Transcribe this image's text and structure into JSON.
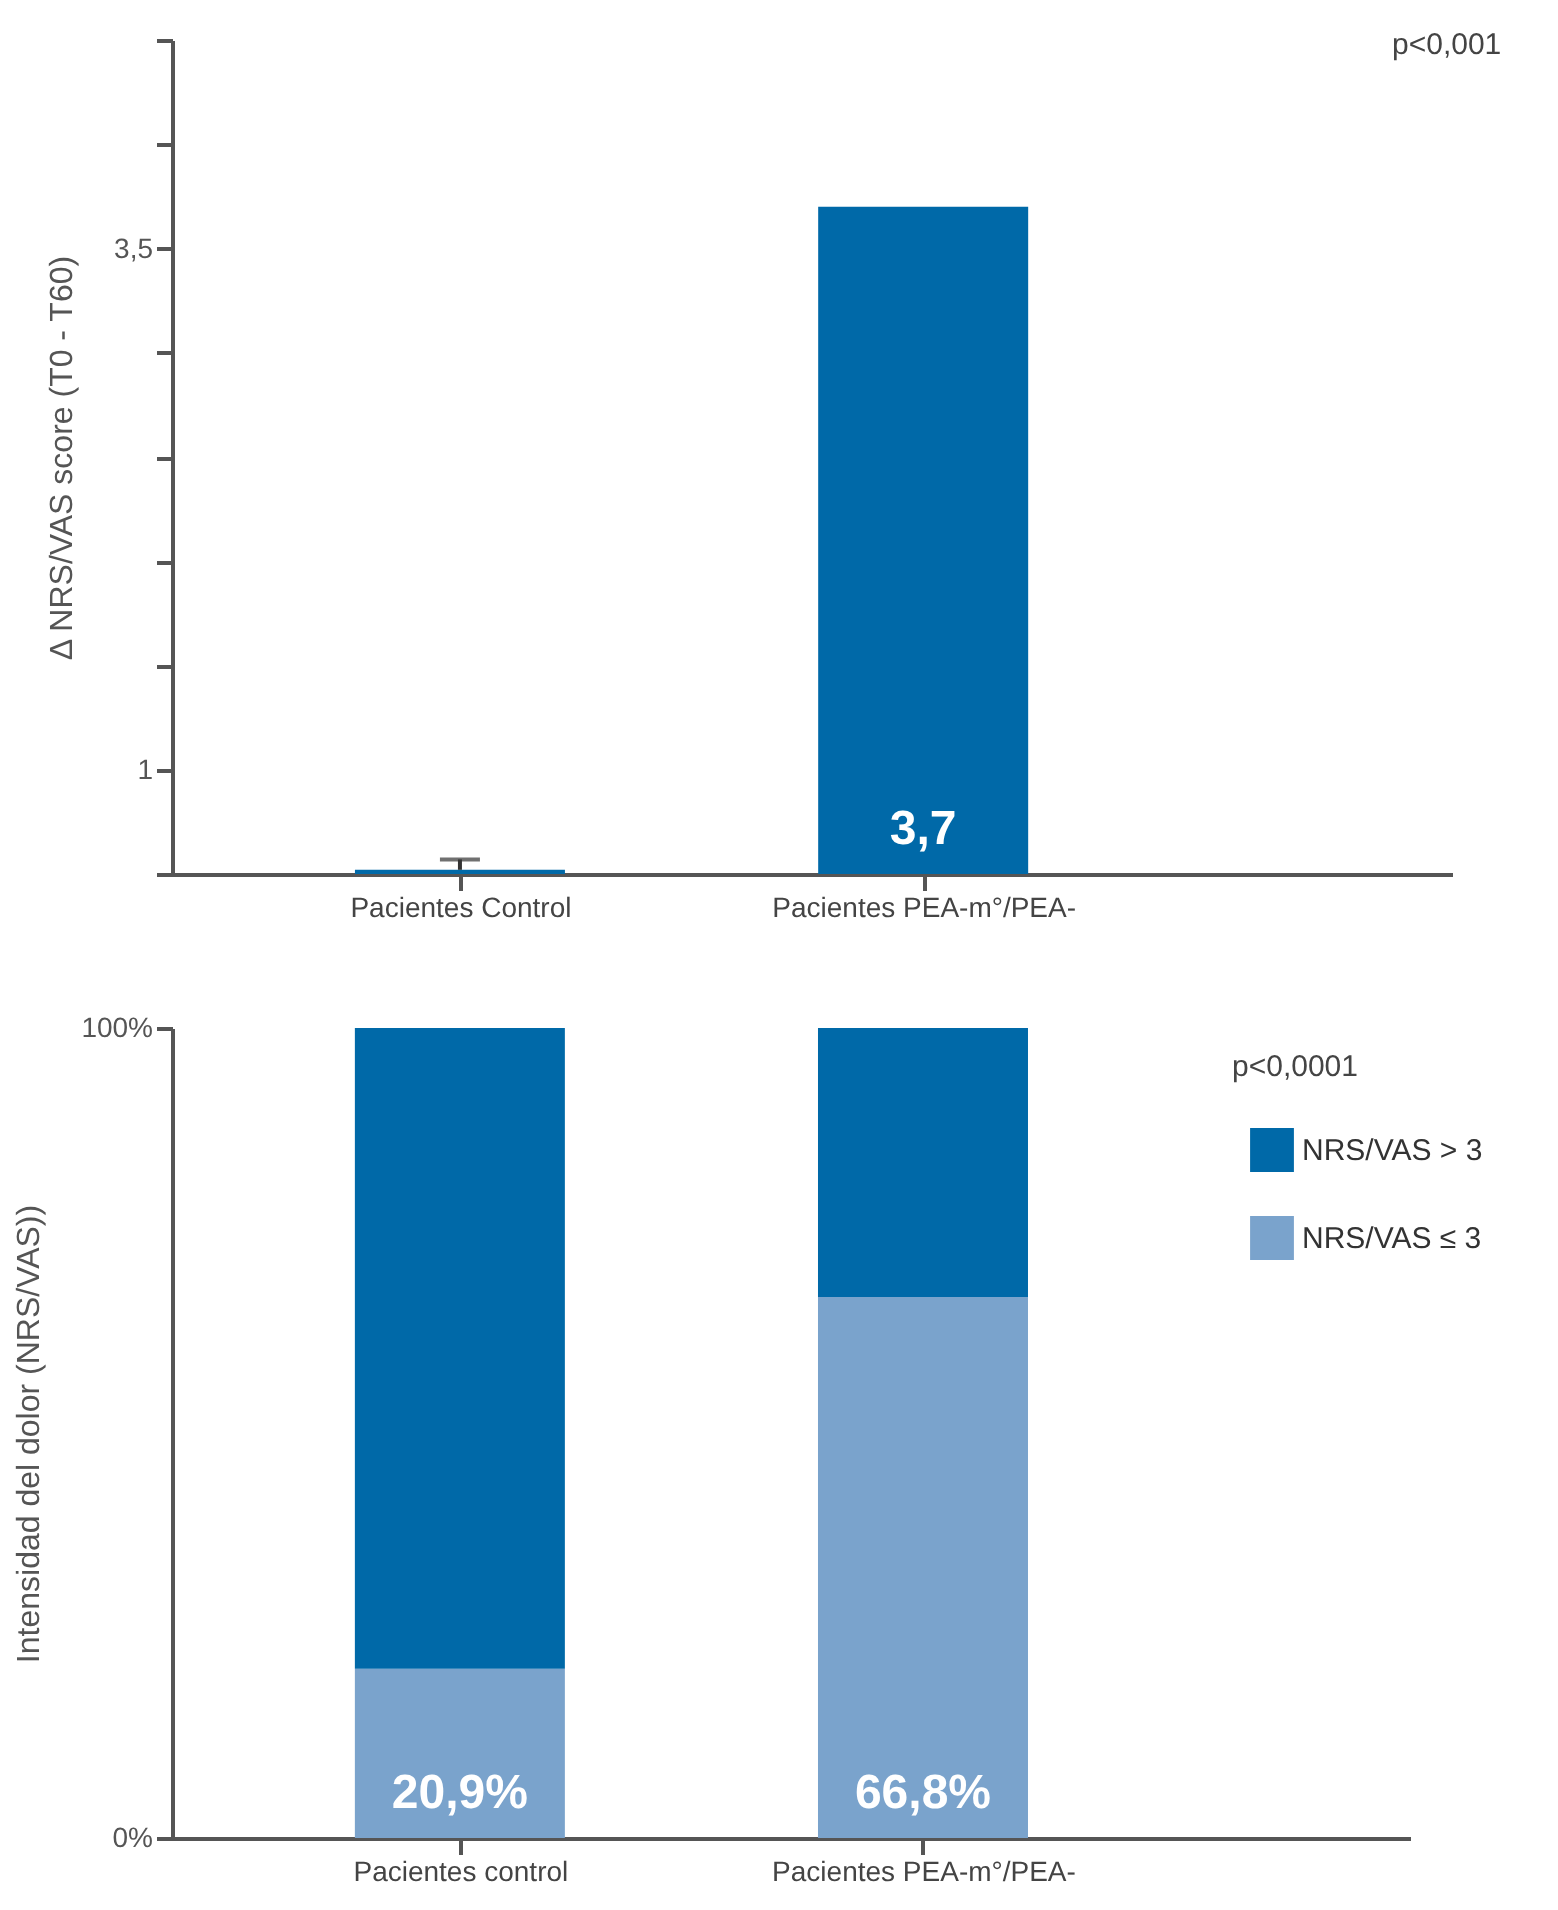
{
  "chart_data": [
    {
      "type": "bar",
      "ylabel": "Δ NRS/VAS score (T0 - T60)",
      "categories": [
        "Pacientes Control",
        "Pacientes PEA-m°/PEA-"
      ],
      "values": [
        0.52,
        3.7
      ],
      "color": "#0069a8",
      "errors": [
        [
          0.52,
          0.57
        ],
        null
      ],
      "value_labels": [
        null,
        "3,7"
      ],
      "ylim": [
        0.5,
        4.5
      ],
      "yticks": [
        {
          "value": 0.5,
          "label": null
        },
        1,
        {
          "value": 1.5,
          "label": null
        },
        {
          "value": 2,
          "label": null
        },
        {
          "value": 2.5,
          "label": null
        },
        {
          "value": 3,
          "label": null
        },
        {
          "value": 3.5,
          "label": "3,5"
        },
        {
          "value": 4,
          "label": null
        },
        {
          "value": 4.5,
          "label": null
        }
      ],
      "annotations": [
        "p<0,001"
      ]
    },
    {
      "type": "bar",
      "stacked": true,
      "ylabel": "Intensidad del dolor (NRS/VAS))",
      "categories": [
        "Pacientes control",
        "Pacientes PEA-m°/PEA-"
      ],
      "series": [
        {
          "name": "NRS/VAS ≤ 3",
          "color": "#7aa3cc",
          "values": [
            20.9,
            66.8
          ],
          "value_labels": [
            "20,9%",
            "66,8%"
          ]
        },
        {
          "name": "NRS/VAS > 3",
          "color": "#0069a8",
          "values": [
            79.1,
            33.2
          ]
        }
      ],
      "ylim": [
        0,
        100
      ],
      "yticks": [
        {
          "value": 0,
          "label": "0%"
        },
        {
          "value": 100,
          "label": "100%"
        }
      ],
      "legend": "top right",
      "annotations": [
        "p<0,0001"
      ]
    }
  ]
}
